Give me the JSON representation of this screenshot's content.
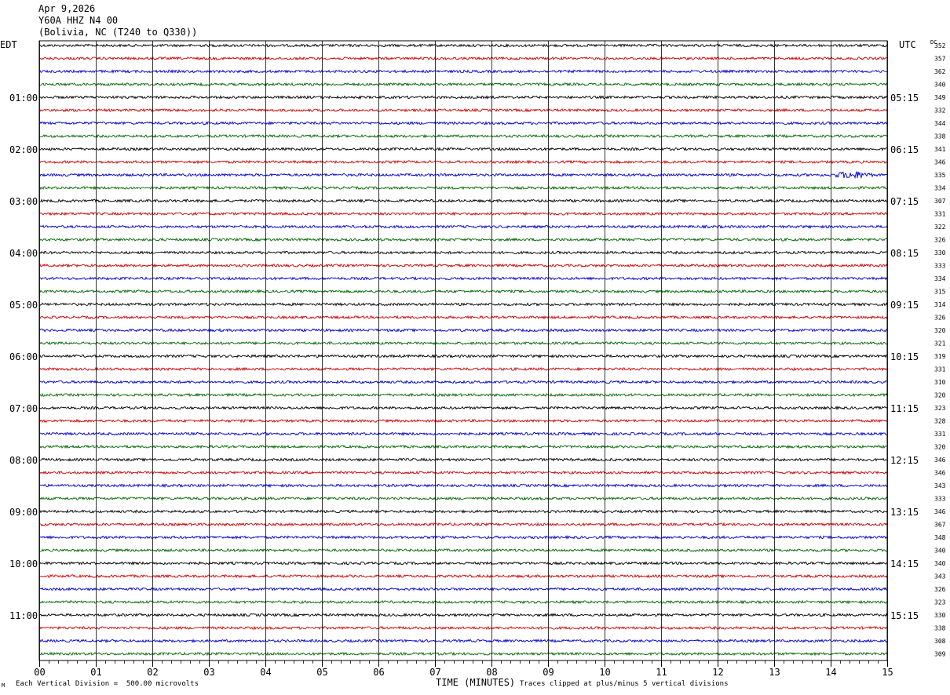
{
  "header": {
    "date": "Apr 9,2026",
    "station": "Y60A HHZ N4 00",
    "location": "(Bolivia, NC (T240 to Q330))"
  },
  "left_axis_label": "EDT",
  "right_axis_label": "UTC",
  "dc_label": "DC",
  "footer": {
    "division": "Each Vertical Division =  500.00 microvolts",
    "clip_note": "Traces clipped at plus/minus 5 vertical divisions",
    "corner_mark": "M"
  },
  "colors": {
    "trace_cycle": [
      "#000000",
      "#cc0000",
      "#0000cc",
      "#006600"
    ],
    "grid": "#000000"
  },
  "chart_data": {
    "type": "line",
    "title": "Apr 9,2026 Y60A HHZ N4 00 (Bolivia, NC (T240 to Q330))",
    "xlabel": "TIME (MINUTES)",
    "xlim": [
      0,
      15
    ],
    "x_ticks": [
      "00",
      "01",
      "02",
      "03",
      "04",
      "05",
      "06",
      "07",
      "08",
      "09",
      "10",
      "11",
      "12",
      "13",
      "14",
      "15"
    ],
    "rows_per_hour": 4,
    "row_count": 48,
    "left_time_labels": [
      "01:00",
      "02:00",
      "03:00",
      "04:00",
      "05:00",
      "06:00",
      "07:00",
      "08:00",
      "09:00",
      "10:00",
      "11:00"
    ],
    "left_label_rows": [
      4,
      8,
      12,
      16,
      20,
      24,
      28,
      32,
      36,
      40,
      44
    ],
    "right_time_labels": [
      "05:15",
      "06:15",
      "07:15",
      "08:15",
      "09:15",
      "10:15",
      "11:15",
      "12:15",
      "13:15",
      "14:15",
      "15:15"
    ],
    "right_label_rows": [
      4,
      8,
      12,
      16,
      20,
      24,
      28,
      32,
      36,
      40,
      44
    ],
    "dc_offsets": [
      "352",
      "357",
      "362",
      "340",
      "349",
      "332",
      "344",
      "338",
      "341",
      "346",
      "335",
      "334",
      "307",
      "331",
      "322",
      "326",
      "330",
      "333",
      "334",
      "315",
      "314",
      "326",
      "320",
      "321",
      "319",
      "331",
      "310",
      "320",
      "323",
      "328",
      "331",
      "320",
      "346",
      "346",
      "343",
      "333",
      "346",
      "367",
      "348",
      "340",
      "340",
      "343",
      "326",
      "323",
      "330",
      "338",
      "308",
      "309"
    ],
    "events": [
      {
        "row": 10,
        "start_minute": 14.0,
        "end_minute": 15.0,
        "amplitude": "elevated"
      }
    ]
  }
}
